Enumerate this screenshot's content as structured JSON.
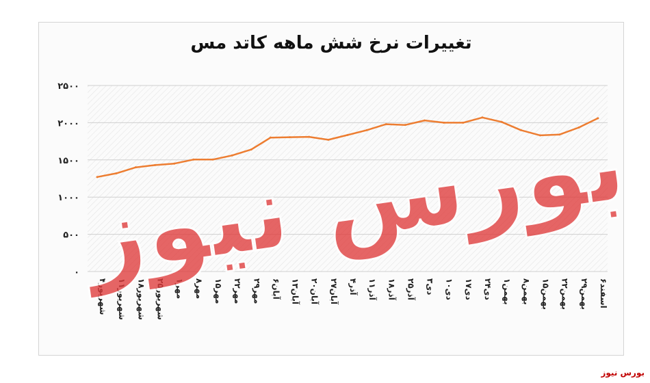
{
  "footer_text": "بورس نیوز",
  "watermark": {
    "text": "بورس نیوز",
    "color": "#e03b3b"
  },
  "chart_data": {
    "type": "line",
    "title": "تغییرات نرخ شش ماهه کاتد مس",
    "xlabel": "",
    "ylabel": "",
    "ylim": [
      0,
      2500
    ],
    "yticks": [
      0,
      500,
      1000,
      1500,
      2000,
      2500
    ],
    "ytick_labels": [
      "۰",
      "۵۰۰",
      "۱۰۰۰",
      "۱۵۰۰",
      "۲۰۰۰",
      "۲۵۰۰"
    ],
    "grid": true,
    "line_color": "#ed7d31",
    "categories": [
      "۴شهریور",
      "۱۱شهریور",
      "۱۸شهریور",
      "۲۵شهریور",
      "۱مهر",
      "۸مهر",
      "۱۵مهر",
      "۲۲مهر",
      "۲۹مهر",
      "۶آبان",
      "۱۳آبان",
      "۲۰آبان",
      "۲۷آبان",
      "۴آذر",
      "۱۱آذر",
      "۱۸آذر",
      "۲۵آذر",
      "۳دی",
      "۱۰دی",
      "۱۷دی",
      "۲۴دی",
      "۱بهمن",
      "۸بهمن",
      "۱۵بهمن",
      "۲۲بهمن",
      "۲۹بهمن",
      "۶اسفند"
    ],
    "values": [
      1270,
      1320,
      1400,
      1430,
      1450,
      1505,
      1505,
      1560,
      1640,
      1800,
      1805,
      1810,
      1770,
      1835,
      1900,
      1980,
      1970,
      2030,
      2000,
      2000,
      2070,
      2010,
      1900,
      1830,
      1840,
      1935,
      2060
    ]
  }
}
